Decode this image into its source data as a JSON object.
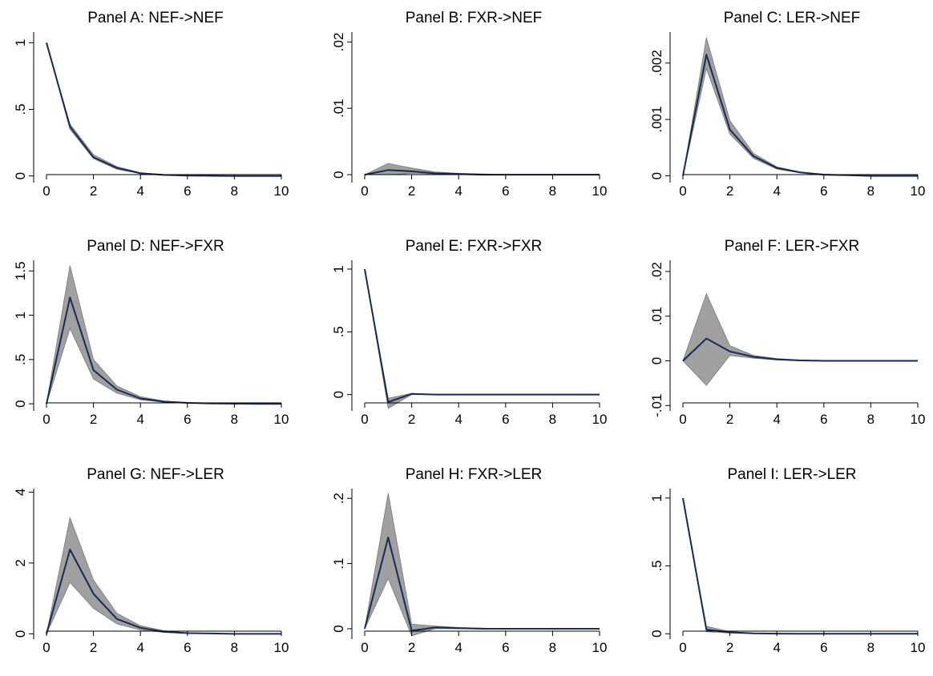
{
  "chart_data": [
    {
      "type": "line",
      "title": "Panel A: NEF->NEF",
      "x": [
        0,
        1,
        2,
        3,
        4,
        5,
        6,
        7,
        8,
        9,
        10
      ],
      "y": [
        1,
        0.37,
        0.14,
        0.06,
        0.02,
        0.008,
        0.003,
        0.001,
        0,
        0,
        0
      ],
      "lower": [
        1,
        0.35,
        0.13,
        0.05,
        0.018,
        0.006,
        0.002,
        0.001,
        0,
        0,
        0
      ],
      "upper": [
        1,
        0.39,
        0.16,
        0.07,
        0.025,
        0.01,
        0.004,
        0.002,
        0.001,
        0,
        0
      ],
      "ylim": [
        -0.05,
        1.08
      ],
      "yticks": [
        0,
        0.5,
        1
      ],
      "yticklabels": [
        "0",
        ".5",
        "1"
      ],
      "xticks": [
        0,
        2,
        4,
        6,
        8,
        10
      ],
      "xticklabels": [
        "0",
        "2",
        "4",
        "6",
        "8",
        "10"
      ]
    },
    {
      "type": "line",
      "title": "Panel B: FXR->NEF",
      "x": [
        0,
        1,
        2,
        3,
        4,
        5,
        6,
        7,
        8,
        9,
        10
      ],
      "y": [
        0,
        0.0007,
        0.0005,
        0.0002,
        0.0001,
        0,
        0,
        0,
        0,
        0,
        0
      ],
      "lower": [
        0,
        0,
        0.0002,
        0.0001,
        0,
        0,
        0,
        0,
        0,
        0,
        0
      ],
      "upper": [
        0,
        0.0017,
        0.001,
        0.0004,
        0.0002,
        0.0001,
        0,
        0,
        0,
        0,
        0
      ],
      "ylim": [
        -0.0012,
        0.0215
      ],
      "yticks": [
        0,
        0.01,
        0.02
      ],
      "yticklabels": [
        "0",
        ".01",
        ".02"
      ],
      "xticks": [
        0,
        2,
        4,
        6,
        8,
        10
      ],
      "xticklabels": [
        "0",
        "2",
        "4",
        "6",
        "8",
        "10"
      ]
    },
    {
      "type": "line",
      "title": "Panel C: LER->NEF",
      "x": [
        0,
        1,
        2,
        3,
        4,
        5,
        6,
        7,
        8,
        9,
        10
      ],
      "y": [
        0,
        0.00215,
        0.00082,
        0.00035,
        0.00014,
        6e-05,
        2e-05,
        1e-05,
        0,
        0,
        0
      ],
      "lower": [
        0,
        0.0019,
        0.00074,
        0.00031,
        0.00012,
        5e-05,
        2e-05,
        1e-05,
        0,
        0,
        0
      ],
      "upper": [
        0,
        0.00245,
        0.00098,
        0.0004,
        0.00016,
        7e-05,
        3e-05,
        1e-05,
        0,
        0,
        0
      ],
      "ylim": [
        -0.00012,
        0.00255
      ],
      "yticks": [
        0,
        0.001,
        0.002
      ],
      "yticklabels": [
        "0",
        ".001",
        ".002"
      ],
      "xticks": [
        0,
        2,
        4,
        6,
        8,
        10
      ],
      "xticklabels": [
        "0",
        "2",
        "4",
        "6",
        "8",
        "10"
      ]
    },
    {
      "type": "line",
      "title": "Panel D: NEF->FXR",
      "x": [
        0,
        1,
        2,
        3,
        4,
        5,
        6,
        7,
        8,
        9,
        10
      ],
      "y": [
        0,
        1.2,
        0.38,
        0.16,
        0.06,
        0.025,
        0.01,
        0.004,
        0.001,
        0,
        0
      ],
      "lower": [
        0,
        0.85,
        0.28,
        0.12,
        0.045,
        0.018,
        0.007,
        0.003,
        0.001,
        0,
        0
      ],
      "upper": [
        0,
        1.56,
        0.5,
        0.2,
        0.08,
        0.032,
        0.013,
        0.005,
        0.002,
        0.001,
        0
      ],
      "ylim": [
        -0.08,
        1.62
      ],
      "yticks": [
        0,
        0.5,
        1,
        1.5
      ],
      "yticklabels": [
        "0",
        ".5",
        "1",
        "1.5"
      ],
      "xticks": [
        0,
        2,
        4,
        6,
        8,
        10
      ],
      "xticklabels": [
        "0",
        "2",
        "4",
        "6",
        "8",
        "10"
      ]
    },
    {
      "type": "line",
      "title": "Panel E: FXR->FXR",
      "x": [
        0,
        1,
        2,
        3,
        4,
        5,
        6,
        7,
        8,
        9,
        10
      ],
      "y": [
        1,
        -0.06,
        0.005,
        0,
        0,
        0,
        0,
        0,
        0,
        0,
        0
      ],
      "lower": [
        1,
        -0.11,
        0,
        0,
        0,
        0,
        0,
        0,
        0,
        0,
        0
      ],
      "upper": [
        1,
        -0.03,
        0.01,
        0,
        0,
        0,
        0,
        0,
        0,
        0,
        0
      ],
      "ylim": [
        -0.13,
        1.07
      ],
      "yticks": [
        0,
        0.5,
        1
      ],
      "yticklabels": [
        "0",
        ".5",
        "1"
      ],
      "xticks": [
        0,
        2,
        4,
        6,
        8,
        10
      ],
      "xticklabels": [
        "0",
        "2",
        "4",
        "6",
        "8",
        "10"
      ]
    },
    {
      "type": "line",
      "title": "Panel F: LER->FXR",
      "x": [
        0,
        1,
        2,
        3,
        4,
        5,
        6,
        7,
        8,
        9,
        10
      ],
      "y": [
        0,
        0.005,
        0.0021,
        0.0009,
        0.0003,
        0.0001,
        0,
        0,
        0,
        0,
        0
      ],
      "lower": [
        0,
        -0.0055,
        0.0012,
        0.0006,
        0.0002,
        0.0001,
        0,
        0,
        0,
        0,
        0
      ],
      "upper": [
        0,
        0.015,
        0.0034,
        0.0012,
        0.0005,
        0.0002,
        0.0001,
        0,
        0,
        0,
        0
      ],
      "ylim": [
        -0.0112,
        0.0225
      ],
      "yticks": [
        -0.01,
        0,
        0.01,
        0.02
      ],
      "yticklabels": [
        "-.01",
        "0",
        ".01",
        ".02"
      ],
      "xticks": [
        0,
        2,
        4,
        6,
        8,
        10
      ],
      "xticklabels": [
        "0",
        "2",
        "4",
        "6",
        "8",
        "10"
      ]
    },
    {
      "type": "line",
      "title": "Panel G: NEF->LER",
      "x": [
        0,
        1,
        2,
        3,
        4,
        5,
        6,
        7,
        8,
        9,
        10
      ],
      "y": [
        0,
        2.38,
        1.13,
        0.42,
        0.17,
        0.06,
        0.02,
        0.01,
        0,
        0,
        0
      ],
      "lower": [
        0,
        1.45,
        0.72,
        0.28,
        0.11,
        0.04,
        0.015,
        0.005,
        0,
        0,
        0
      ],
      "upper": [
        0,
        3.28,
        1.52,
        0.58,
        0.23,
        0.09,
        0.03,
        0.01,
        0.005,
        0,
        0
      ],
      "ylim": [
        -0.15,
        4.1
      ],
      "yticks": [
        0,
        2,
        4
      ],
      "yticklabels": [
        "0",
        "2",
        "4"
      ],
      "xticks": [
        0,
        2,
        4,
        6,
        8,
        10
      ],
      "xticklabels": [
        "0",
        "2",
        "4",
        "6",
        "8",
        "10"
      ]
    },
    {
      "type": "line",
      "title": "Panel H: FXR->LER",
      "x": [
        0,
        1,
        2,
        3,
        4,
        5,
        6,
        7,
        8,
        9,
        10
      ],
      "y": [
        0,
        0.14,
        -0.003,
        0.002,
        0.001,
        0,
        0,
        0,
        0,
        0,
        0
      ],
      "lower": [
        0,
        0.077,
        -0.011,
        0,
        0,
        0,
        0,
        0,
        0,
        0,
        0
      ],
      "upper": [
        0,
        0.208,
        0.007,
        0.004,
        0.002,
        0.001,
        0,
        0,
        0,
        0,
        0
      ],
      "ylim": [
        -0.016,
        0.215
      ],
      "yticks": [
        0,
        0.1,
        0.2
      ],
      "yticklabels": [
        "0",
        ".1",
        ".2"
      ],
      "xticks": [
        0,
        2,
        4,
        6,
        8,
        10
      ],
      "xticklabels": [
        "0",
        "2",
        "4",
        "6",
        "8",
        "10"
      ]
    },
    {
      "type": "line",
      "title": "Panel I: LER->LER",
      "x": [
        0,
        1,
        2,
        3,
        4,
        5,
        6,
        7,
        8,
        9,
        10
      ],
      "y": [
        1,
        0.03,
        0.01,
        0.003,
        0.001,
        0,
        0,
        0,
        0,
        0,
        0
      ],
      "lower": [
        1,
        0.015,
        0.005,
        0.002,
        0,
        0,
        0,
        0,
        0,
        0,
        0
      ],
      "upper": [
        1,
        0.055,
        0.015,
        0.005,
        0.002,
        0.001,
        0,
        0,
        0,
        0,
        0
      ],
      "ylim": [
        -0.04,
        1.07
      ],
      "yticks": [
        0,
        0.5,
        1
      ],
      "yticklabels": [
        "0",
        ".5",
        "1"
      ],
      "xticks": [
        0,
        2,
        4,
        6,
        8,
        10
      ],
      "xticklabels": [
        "0",
        "2",
        "4",
        "6",
        "8",
        "10"
      ]
    }
  ],
  "colors": {
    "band_fill": "#a0a0a0",
    "band_edge": "#7a7a7a",
    "line": "#1a2a55"
  }
}
